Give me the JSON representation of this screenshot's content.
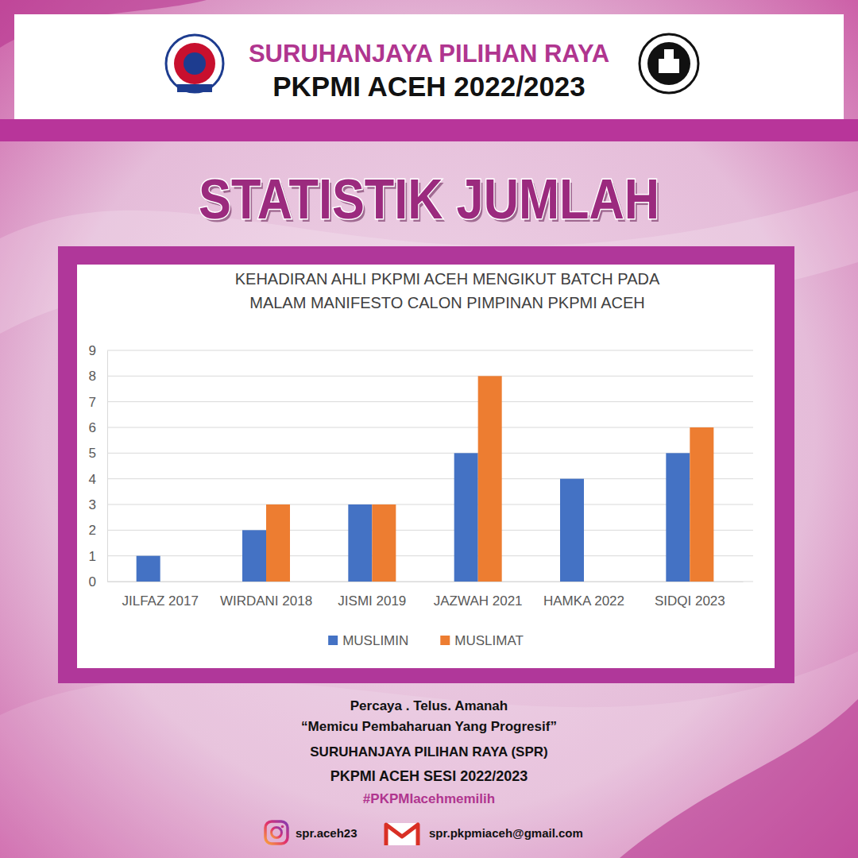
{
  "header": {
    "title": "SURUHANJAYA PILIHAN RAYA",
    "subtitle": "PKPMI ACEH 2022/2023"
  },
  "heading": "STATISTIK JUMLAH",
  "chart_data": {
    "type": "bar",
    "title": "KEHADIRAN AHLI PKPMI ACEH MENGIKUT BATCH PADA MALAM MANIFESTO CALON PIMPINAN PKPMI ACEH",
    "categories": [
      "JILFAZ 2017",
      "WIRDANI 2018",
      "JISMI 2019",
      "JAZWAH 2021",
      "HAMKA 2022",
      "SIDQI 2023"
    ],
    "series": [
      {
        "name": "MUSLIMIN",
        "color": "#4472c4",
        "values": [
          1,
          2,
          3,
          5,
          4,
          5
        ]
      },
      {
        "name": "MUSLIMAT",
        "color": "#ed7d31",
        "values": [
          0,
          3,
          3,
          8,
          0,
          6
        ]
      }
    ],
    "ylim": [
      0,
      9
    ],
    "yticks": [
      0,
      1,
      2,
      3,
      4,
      5,
      6,
      7,
      8,
      9
    ],
    "grid": true,
    "legend": "bottom"
  },
  "footer": {
    "tagline": "Percaya . Telus. Amanah",
    "motto": "“Memicu Pembaharuan Yang Progresif”",
    "organizer": "SURUHANJAYA PILIHAN RAYA (SPR)",
    "session": "PKPMI ACEH SESI 2022/2023",
    "hashtag": "#PKPMIacehmemilih"
  },
  "contacts": {
    "instagram": "spr.aceh23",
    "email": "spr.pkpmiaceh@gmail.com"
  }
}
